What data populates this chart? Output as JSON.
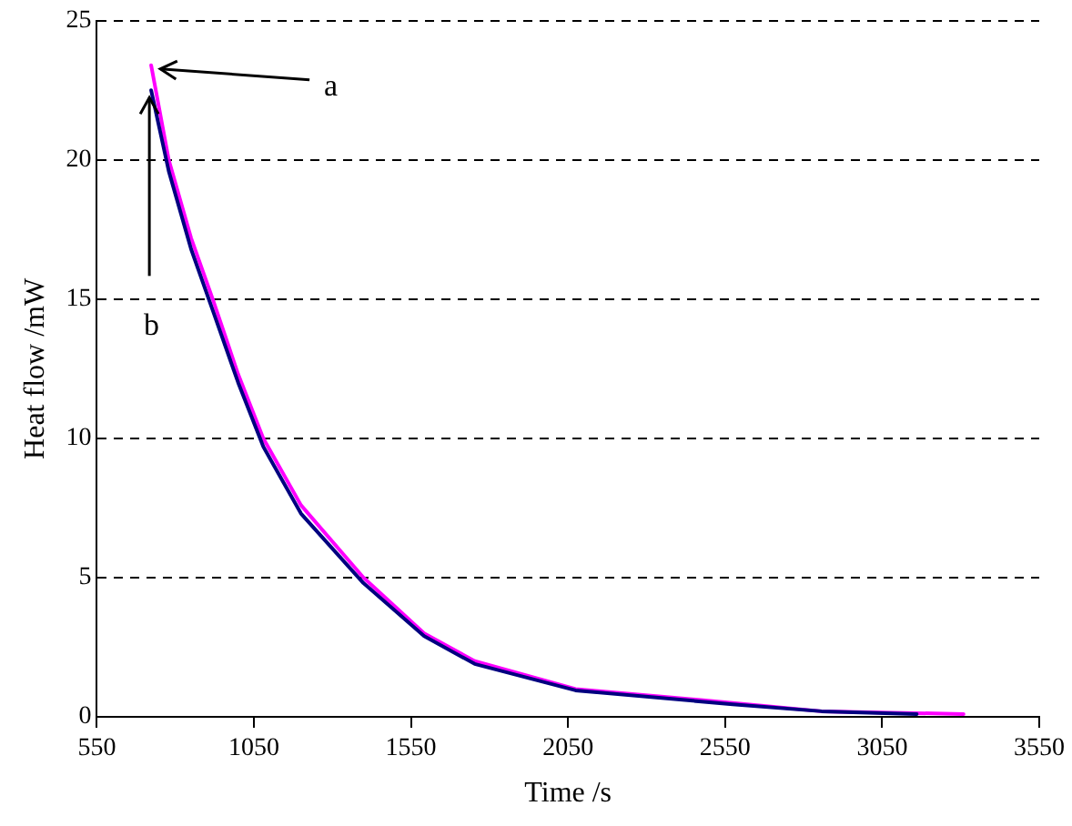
{
  "chart_data": {
    "type": "line",
    "xlabel": "Time /s",
    "ylabel": "Heat flow /mW",
    "xlim": [
      550,
      3550
    ],
    "xticks": [
      550,
      1050,
      1550,
      2050,
      2550,
      3050,
      3550
    ],
    "ylim": [
      0,
      25
    ],
    "yticks": [
      0,
      5,
      10,
      15,
      20,
      25
    ],
    "grid": "y",
    "legend": false,
    "marker": "none",
    "line_style": "solid",
    "series": [
      {
        "color": "#000080",
        "x": [
          723,
          779,
          850,
          919,
          1000,
          1080,
          1200,
          1399,
          1592,
          1753,
          2074,
          2574,
          2857,
          3160
        ],
        "values": [
          22.5,
          19.6,
          16.8,
          14.6,
          12.0,
          9.7,
          7.3,
          4.8,
          2.9,
          1.9,
          0.95,
          0.45,
          0.2,
          0.1
        ]
      },
      {
        "color": "#ff00ff",
        "x": [
          723,
          779,
          850,
          919,
          1000,
          1080,
          1200,
          1399,
          1592,
          1753,
          2074,
          2574,
          2857,
          3309
        ],
        "values": [
          23.4,
          20,
          17.2,
          15,
          12.3,
          10,
          7.6,
          5,
          3,
          2,
          1,
          0.5,
          0.2,
          0.1
        ]
      }
    ],
    "annotations": [
      {
        "text": "a",
        "x": 723,
        "y": 23.4
      },
      {
        "text": "b",
        "x": 723,
        "y": 22.5
      }
    ]
  }
}
